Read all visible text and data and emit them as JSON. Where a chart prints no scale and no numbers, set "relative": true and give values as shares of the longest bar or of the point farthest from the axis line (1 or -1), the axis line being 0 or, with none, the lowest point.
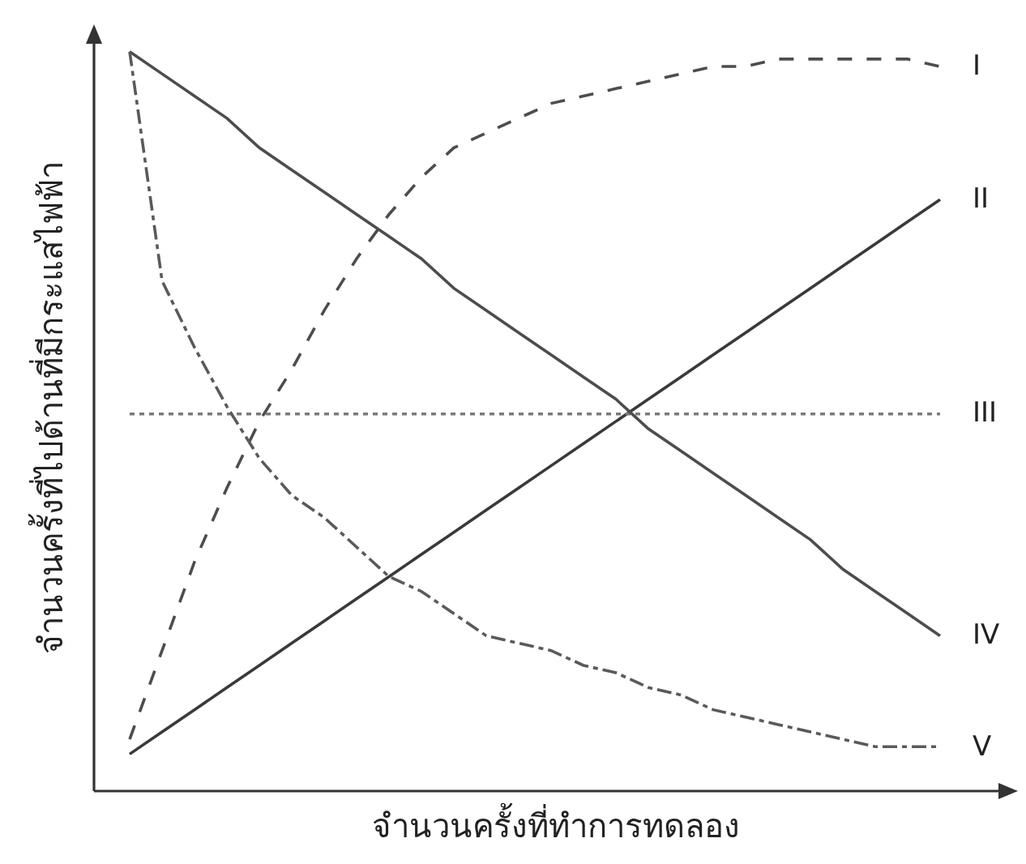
{
  "chart_data": {
    "type": "line",
    "relative": true,
    "xlabel": "จำนวนครั้งที่ทำการทดลอง",
    "ylabel": "จำนวนครั้งที่ไปด้านที่มีกระแสไฟฟ้า",
    "categories": [
      null,
      null,
      null,
      null,
      null,
      null,
      null,
      null,
      null,
      null,
      null,
      null,
      null,
      null,
      null,
      null,
      null,
      null,
      null,
      null,
      null,
      null,
      null,
      null,
      null,
      null
    ],
    "series": [
      {
        "name": "I",
        "color": "#4d4d4d",
        "line_style": "dashed",
        "values": [
          0.07,
          0.19,
          0.31,
          0.41,
          0.5,
          0.57,
          0.65,
          0.72,
          0.78,
          0.83,
          0.87,
          0.89,
          0.91,
          0.93,
          0.94,
          0.95,
          0.96,
          0.97,
          0.98,
          0.98,
          0.99,
          0.99,
          0.99,
          0.99,
          0.99,
          0.98
        ]
      },
      {
        "name": "II",
        "color": "#3a3a3a",
        "line_style": "solid",
        "values": [
          0.05,
          0.08,
          0.11,
          0.14,
          0.17,
          0.2,
          0.23,
          0.26,
          0.29,
          0.32,
          0.35,
          0.38,
          0.41,
          0.44,
          0.47,
          0.5,
          0.53,
          0.56,
          0.59,
          0.62,
          0.65,
          0.68,
          0.71,
          0.74,
          0.77,
          0.8
        ]
      },
      {
        "name": "III",
        "color": "#7a7a7a",
        "line_style": "dotted",
        "values": [
          0.51,
          0.51,
          0.51,
          0.51,
          0.51,
          0.51,
          0.51,
          0.51,
          0.51,
          0.51,
          0.51,
          0.51,
          0.51,
          0.51,
          0.51,
          0.51,
          0.51,
          0.51,
          0.51,
          0.51,
          0.51,
          0.51,
          0.51,
          0.51,
          0.51,
          0.51
        ]
      },
      {
        "name": "IV",
        "color": "#4d4d4d",
        "line_style": "solid",
        "values": [
          1.0,
          0.97,
          0.94,
          0.91,
          0.87,
          0.84,
          0.81,
          0.78,
          0.75,
          0.72,
          0.68,
          0.65,
          0.62,
          0.59,
          0.56,
          0.53,
          0.49,
          0.46,
          0.43,
          0.4,
          0.37,
          0.34,
          0.3,
          0.27,
          0.24,
          0.21
        ]
      },
      {
        "name": "V",
        "color": "#5a5a5a",
        "line_style": "dashdot",
        "values": [
          1.0,
          0.69,
          0.6,
          0.52,
          0.45,
          0.4,
          0.37,
          0.33,
          0.29,
          0.27,
          0.24,
          0.21,
          0.2,
          0.19,
          0.17,
          0.16,
          0.14,
          0.13,
          0.11,
          0.1,
          0.09,
          0.08,
          0.07,
          0.06,
          0.06,
          0.06
        ]
      }
    ]
  }
}
